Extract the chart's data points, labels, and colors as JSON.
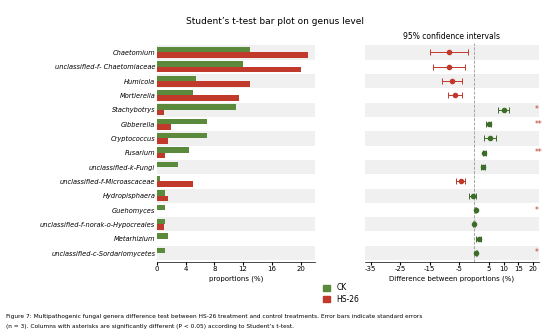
{
  "title": "Student’s t-test bar plot on genus level",
  "ci_label": "95% confidence intervals",
  "xlabel_left": "proportions (%)",
  "xlabel_right": "Difference between proportions (%)",
  "categories": [
    "Chaetomium",
    "unclassified-f- Chaetomiaceae",
    "Humicola",
    "Mortierella",
    "Stachybotrys",
    "Gibberella",
    "Cryptococcus",
    "Fusarium",
    "unclassified-k-Fungi",
    "unclassified-f-Microascaceae",
    "Hydropisphaera",
    "Guehomyces",
    "unclassified-f-norak-o-Hypocreales",
    "Metarhizium",
    "unclassified-c-Sordariomycetes"
  ],
  "ck_values": [
    13.0,
    12.0,
    5.5,
    5.0,
    11.0,
    7.0,
    7.0,
    4.5,
    3.0,
    0.5,
    1.2,
    1.2,
    1.2,
    1.5,
    1.2
  ],
  "hs26_values": [
    21.0,
    20.0,
    13.0,
    11.5,
    1.0,
    2.0,
    1.5,
    1.2,
    0.0,
    5.0,
    1.5,
    0.0,
    1.0,
    0.0,
    0.0
  ],
  "diff_values": [
    -8.5,
    -8.5,
    -7.5,
    -6.5,
    10.0,
    5.0,
    5.5,
    3.5,
    3.0,
    -4.5,
    -0.5,
    0.5,
    0.0,
    1.5,
    0.8
  ],
  "diff_errors": [
    6.5,
    5.5,
    3.5,
    2.5,
    2.0,
    0.8,
    2.0,
    0.5,
    0.8,
    1.5,
    1.2,
    0.3,
    0.3,
    0.8,
    0.3
  ],
  "diff_colors": [
    "red",
    "red",
    "red",
    "red",
    "green",
    "green",
    "green",
    "green",
    "green",
    "red",
    "green",
    "green",
    "green",
    "green",
    "green"
  ],
  "asterisks": [
    "",
    "",
    "",
    "",
    "*",
    "**",
    "",
    "**",
    "",
    "",
    "",
    "*",
    "",
    "",
    "*"
  ],
  "bar_color_ck": "#5c8a3c",
  "bar_color_hs26": "#c0392b",
  "dot_color_green": "#3d6b28",
  "dot_color_red": "#c0392b",
  "left_xlim": [
    0,
    22
  ],
  "left_xticks": [
    0,
    4,
    8,
    12,
    16,
    20
  ],
  "right_xlim": [
    -37,
    22
  ],
  "right_xticks": [
    -35,
    -25,
    -15,
    -5,
    5,
    10,
    15,
    20
  ],
  "figure_caption_upper": "Figure 7: Multipathogenic fungal genera difference test between HS-26 treatment and control treatments. Error bars indicate standard errors",
  "figure_caption_lower": "(n = 3). Columns with asterisks are significantly different (P < 0.05) according to Student’s t-test."
}
